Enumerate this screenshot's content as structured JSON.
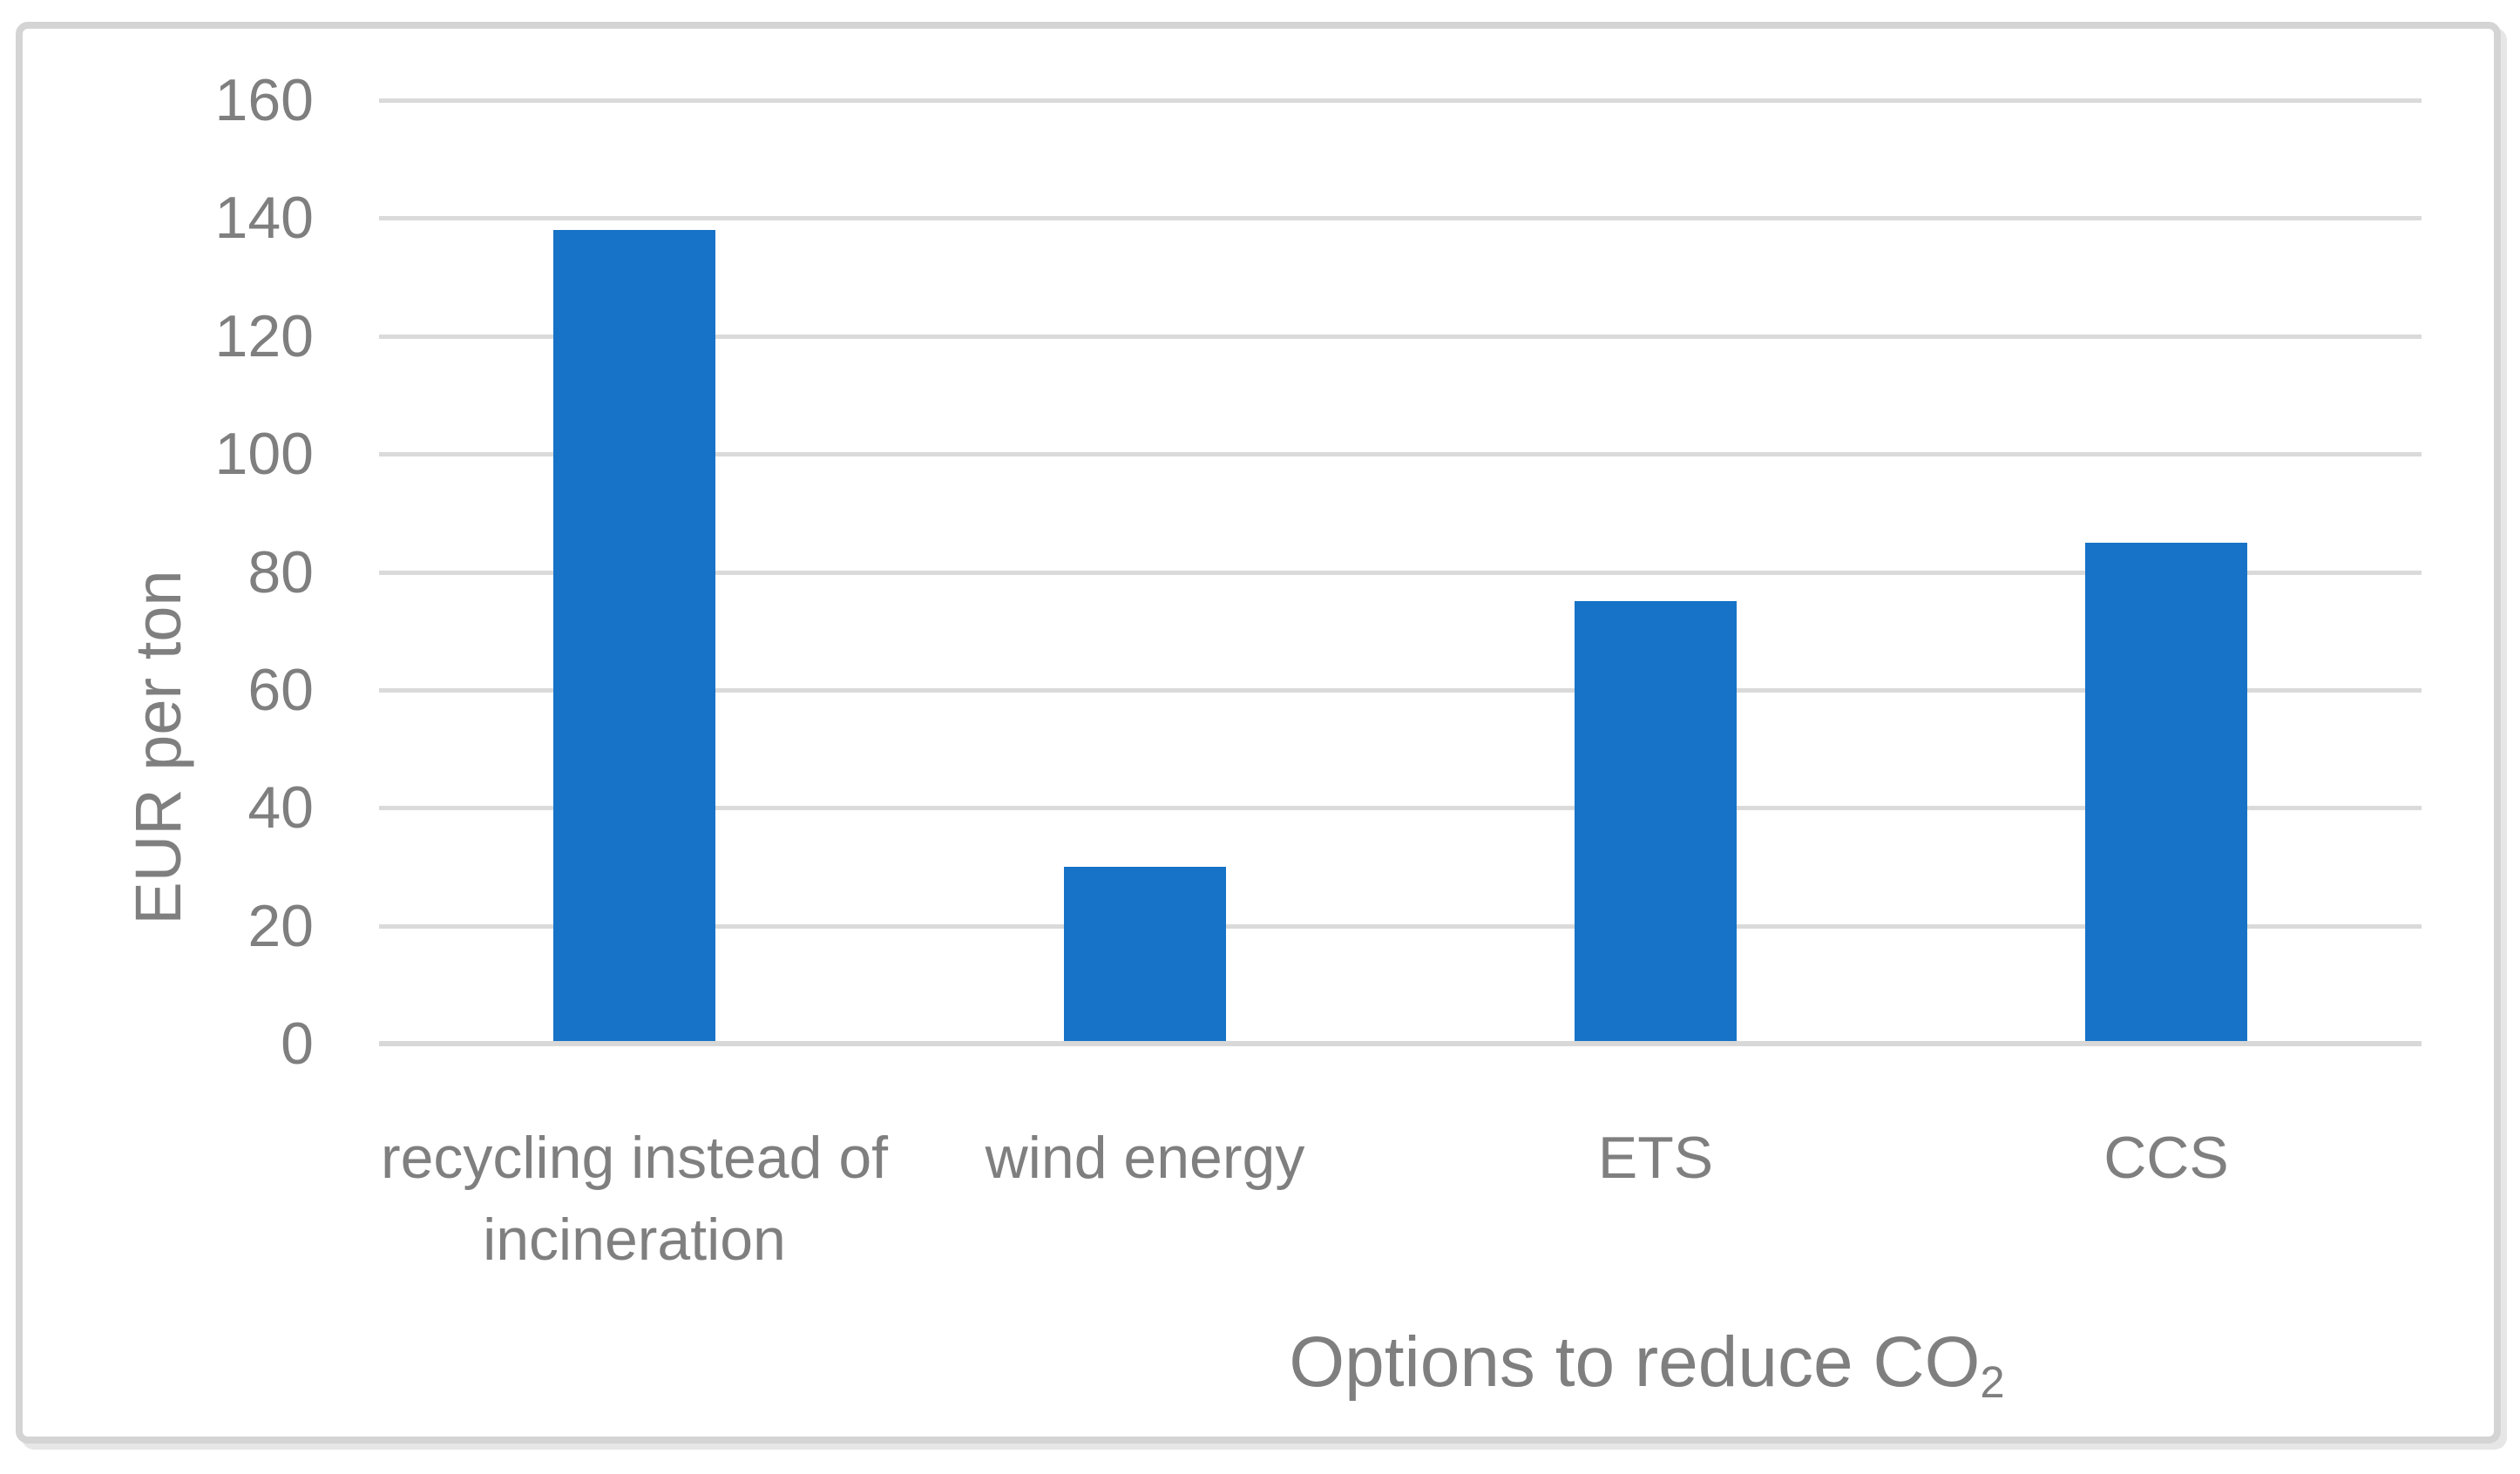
{
  "figure": {
    "background_color": "#FFFFFF",
    "border_color": "#D4D4D4"
  },
  "chart_data": {
    "type": "bar",
    "categories": [
      "recycling instead of incineration",
      "wind energy",
      "ETS",
      "CCS"
    ],
    "values": [
      138,
      30,
      75,
      85
    ],
    "title": "",
    "xlabel": {
      "text": "Options to reduce CO",
      "subscript": "2"
    },
    "ylabel": "EUR per ton",
    "ylim": [
      0,
      160
    ],
    "ytick_interval": 20,
    "yticks": [
      0,
      20,
      40,
      60,
      80,
      100,
      120,
      140,
      160
    ],
    "grid": true,
    "legend": "none",
    "colors": {
      "bar": "#1673C7",
      "gridline": "#DADADA",
      "axis_line": "#D8D8D8",
      "text": "#7F7F7F"
    }
  }
}
